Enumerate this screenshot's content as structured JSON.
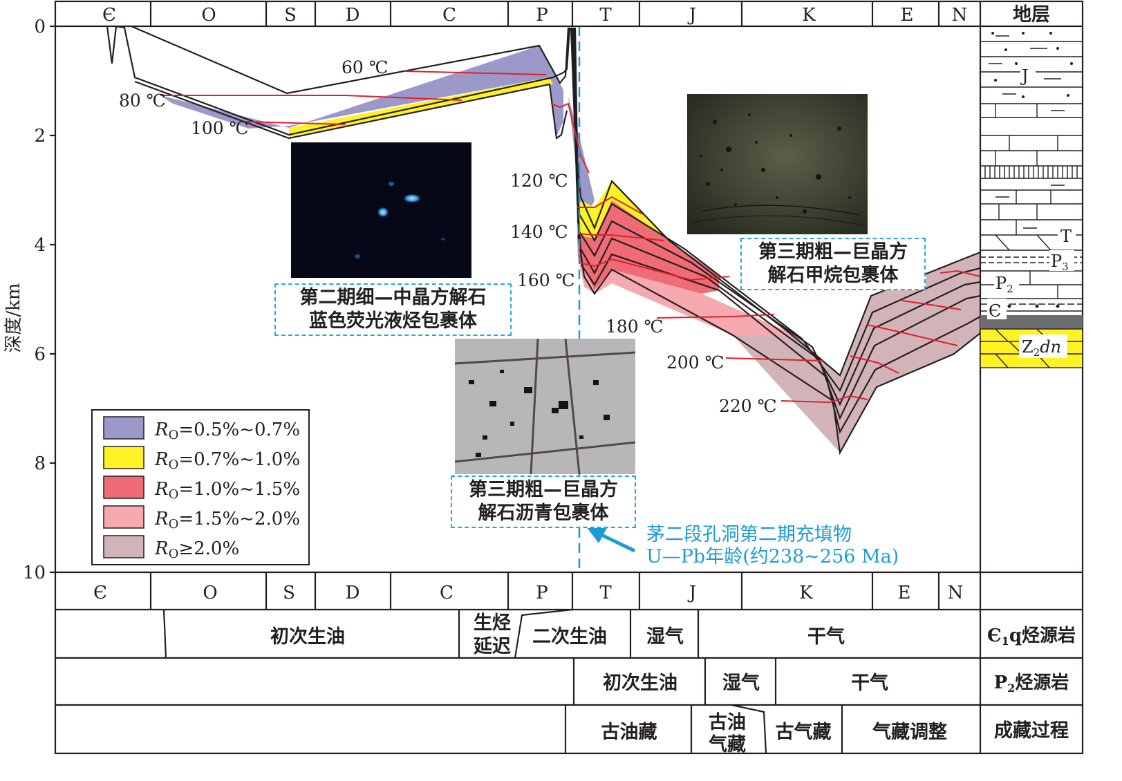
{
  "periods_top": [
    "Є",
    "O",
    "S",
    "D",
    "C",
    "P",
    "T",
    "J",
    "K",
    "E",
    "N"
  ],
  "periods_bottom": [
    "Є",
    "O",
    "S",
    "D",
    "C",
    "P",
    "T",
    "J",
    "K",
    "E",
    "N"
  ],
  "strata_header": "地层",
  "y_axis": {
    "label": "深度/km",
    "ticks": [
      "0",
      "2",
      "4",
      "6",
      "8",
      "10"
    ]
  },
  "isotherms": [
    "60 ℃",
    "80 ℃",
    "100 ℃",
    "120 ℃",
    "140 ℃",
    "160 ℃",
    "180 ℃",
    "200 ℃",
    "220 ℃"
  ],
  "legend": [
    {
      "name": "R",
      "sub": "O",
      "rest": "=0.5%~0.7%",
      "color": "#9b99c9"
    },
    {
      "name": "R",
      "sub": "O",
      "rest": "=0.7%~1.0%",
      "color": "#fff224"
    },
    {
      "name": "R",
      "sub": "O",
      "rest": "=1.0%~1.5%",
      "color": "#ef6b75"
    },
    {
      "name": "R",
      "sub": "O",
      "rest": "=1.5%~2.0%",
      "color": "#f6a9ae"
    },
    {
      "name": "R",
      "sub": "O",
      "rest": "≥2.0%",
      "color": "#d2b4b8"
    }
  ],
  "photos": {
    "stage2_caption": [
      "第二期细—中晶方解石",
      "蓝色荧光液烃包裹体"
    ],
    "stage3_methane_caption": [
      "第三期粗—巨晶方",
      "解石甲烷包裹体"
    ],
    "stage3_bitumen_caption": [
      "第三期粗—巨晶方",
      "解石沥青包裹体"
    ]
  },
  "annotation": [
    "茅二段孔洞第二期充填物",
    "U—Pb年龄(约238~256 Ma)"
  ],
  "strata_column": {
    "J": "J",
    "T": "T",
    "P3": {
      "main": "P",
      "sub": "3"
    },
    "P2": {
      "main": "P",
      "sub": "2"
    },
    "E": "Є",
    "Z2dn": {
      "main": "Z",
      "sub": "2",
      "tail": "dn"
    }
  },
  "rows": {
    "row1": {
      "cells": [
        "初次生油",
        "生烃",
        "延迟",
        "二次生油",
        "湿气",
        "干气"
      ],
      "label": {
        "main": "Є",
        "sub": "1",
        "tail": "q烃源岩"
      }
    },
    "row2": {
      "cells": [
        "初次生油",
        "湿气",
        "干气"
      ],
      "label": {
        "main": "P",
        "sub": "2",
        "tail": "烃源岩"
      }
    },
    "row3": {
      "cells": [
        "古油藏",
        "古油",
        "气藏",
        "古气藏",
        "气藏调整"
      ],
      "label": "成藏过程"
    }
  },
  "colors": {
    "purple": "#9b99c9",
    "yellow": "#fff224",
    "red": "#ef6b75",
    "pink": "#f6a9ae",
    "mauve": "#d2b4b8",
    "isotherm": "#e0202a",
    "accent_blue": "#29a8d6"
  }
}
